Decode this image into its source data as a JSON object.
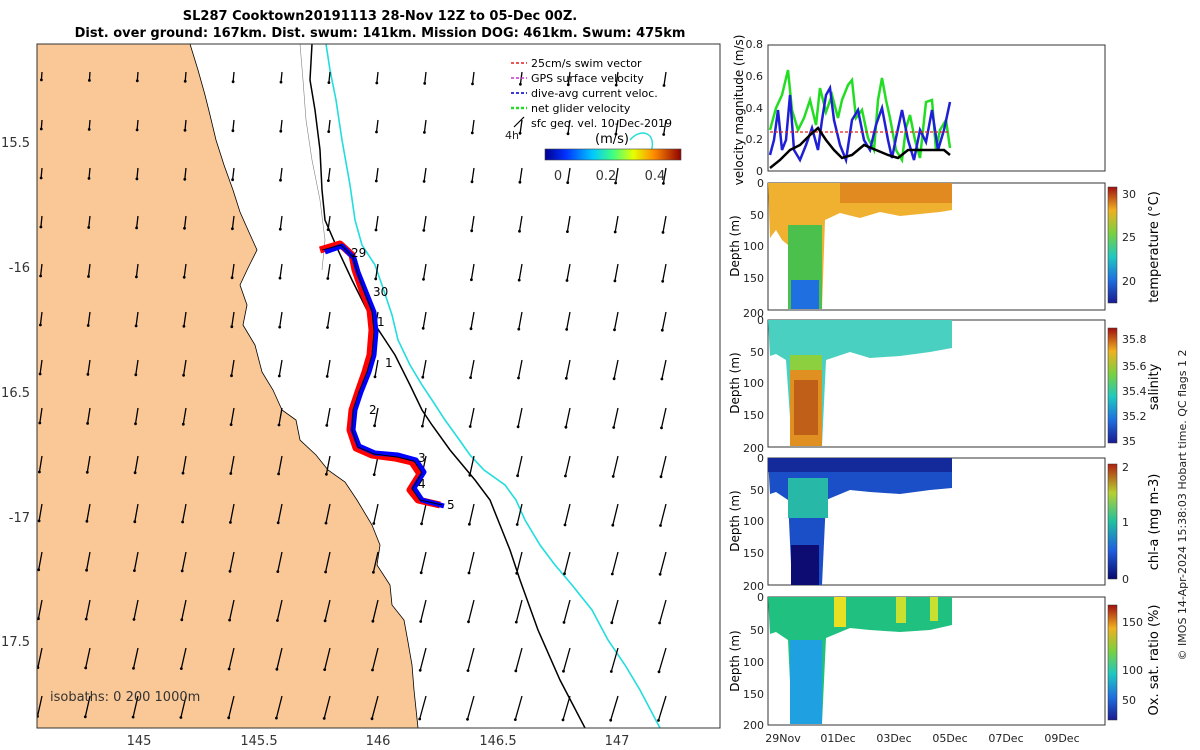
{
  "title": {
    "line1": "SL287 Cooktown20191113 28-Nov 12Z to 05-Dec 00Z.",
    "line2": "Dist. over ground: 167km. Dist. swum: 141km. Mission DOG: 461km. Swum: 475km"
  },
  "map": {
    "lon_ticks": [
      "145",
      "145.5",
      "146",
      "146.5",
      "147"
    ],
    "lat_ticks": [
      "15.5",
      "-16",
      "16.5",
      "-17",
      "17.5"
    ],
    "isobaths_label": "isobaths: 0   200  1000m",
    "day_labels": [
      "29",
      "30",
      "1",
      "1",
      "2",
      "3",
      "4",
      "5"
    ],
    "eddy_label": "4h",
    "legend": [
      {
        "label": "25cm/s swim vector",
        "color": "#e02020"
      },
      {
        "label": "GPS surface velocity",
        "color": "#cc33cc"
      },
      {
        "label": "dive-avg current veloc.",
        "color": "#1f1fd6"
      },
      {
        "label": "net glider velocity",
        "color": "#22dd22"
      },
      {
        "label": "sfc geo. vel. 10-Dec-2019",
        "color": "#000000"
      }
    ],
    "colorbar": {
      "unit": "(m/s)",
      "ticks": [
        "0",
        "0.2",
        "0.4"
      ]
    },
    "colors": {
      "land": "#fac896",
      "track_red": "#ff0000",
      "track_blue": "#0000ff",
      "isobath_200": "#000000",
      "isobath_1000": "#22dddd"
    }
  },
  "velocity_panel": {
    "ylabel": "velocity magnitude (m/s)",
    "yticks": [
      "0",
      "0.2",
      "0.4",
      "0.6",
      "0.8"
    ]
  },
  "profiles": [
    {
      "ylabel": "Depth (m)",
      "cb_label": "temperature (°C)",
      "cb_ticks": [
        "30",
        "25",
        "20"
      ]
    },
    {
      "ylabel": "Depth (m)",
      "cb_label": "salinity",
      "cb_ticks": [
        "35.8",
        "35.6",
        "35.4",
        "35.2",
        "35"
      ]
    },
    {
      "ylabel": "Depth (m)",
      "cb_label": "chl-a (mg m-3)",
      "cb_ticks": [
        "2",
        "1",
        "0"
      ]
    },
    {
      "ylabel": "Depth (m)",
      "cb_label": "Ox. sat. ratio (%)",
      "cb_ticks": [
        "150",
        "100",
        "50"
      ]
    }
  ],
  "depth_ticks": [
    "0",
    "50",
    "100",
    "150",
    "200"
  ],
  "date_ticks": [
    "29Nov",
    "01Dec",
    "03Dec",
    "05Dec",
    "07Dec",
    "09Dec"
  ],
  "footer": "© IMOS 14-Apr-2024 15:38:03 Hobart time. QC flags 1  2"
}
